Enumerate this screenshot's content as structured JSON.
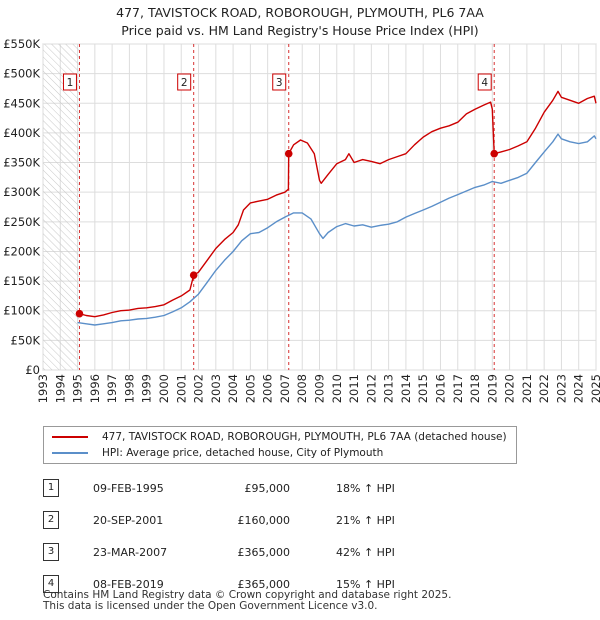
{
  "header": {
    "title_line1": "477, TAVISTOCK ROAD, ROBOROUGH, PLYMOUTH, PL6 7AA",
    "title_line2": "Price paid vs. HM Land Registry's House Price Index (HPI)"
  },
  "legend": {
    "property_label": "477, TAVISTOCK ROAD, ROBOROUGH, PLYMOUTH, PL6 7AA (detached house)",
    "hpi_label": "HPI: Average price, detached house, City of Plymouth"
  },
  "sales": [
    {
      "num": "1",
      "date": "09-FEB-1995",
      "price": "£95,000",
      "hpi": "18% ↑ HPI"
    },
    {
      "num": "2",
      "date": "20-SEP-2001",
      "price": "£160,000",
      "hpi": "21% ↑ HPI"
    },
    {
      "num": "3",
      "date": "23-MAR-2007",
      "price": "£365,000",
      "hpi": "42% ↑ HPI"
    },
    {
      "num": "4",
      "date": "08-FEB-2019",
      "price": "£365,000",
      "hpi": "15% ↑ HPI"
    }
  ],
  "footer": {
    "line1": "Contains HM Land Registry data © Crown copyright and database right 2025.",
    "line2": "This data is licensed under the Open Government Licence v3.0."
  },
  "colors": {
    "property": "#cc0000",
    "hpi": "#5b8fc9",
    "hatch": "#c8c8c8",
    "grid": "#dddddd",
    "sale_marker_line": "#cc0000"
  },
  "chart_data": {
    "type": "line",
    "xlim": [
      1993,
      2025
    ],
    "ylim": [
      0,
      550000
    ],
    "x_ticks": [
      1993,
      1994,
      1995,
      1996,
      1997,
      1998,
      1999,
      2000,
      2001,
      2002,
      2003,
      2004,
      2005,
      2006,
      2007,
      2008,
      2009,
      2010,
      2011,
      2012,
      2013,
      2014,
      2015,
      2016,
      2017,
      2018,
      2019,
      2020,
      2021,
      2022,
      2023,
      2024,
      2025
    ],
    "y_ticks": [
      {
        "value": 0,
        "label": "£0"
      },
      {
        "value": 50000,
        "label": "£50K"
      },
      {
        "value": 100000,
        "label": "£100K"
      },
      {
        "value": 150000,
        "label": "£150K"
      },
      {
        "value": 200000,
        "label": "£200K"
      },
      {
        "value": 250000,
        "label": "£250K"
      },
      {
        "value": 300000,
        "label": "£300K"
      },
      {
        "value": 350000,
        "label": "£350K"
      },
      {
        "value": 400000,
        "label": "£400K"
      },
      {
        "value": 450000,
        "label": "£450K"
      },
      {
        "value": 500000,
        "label": "£500K"
      },
      {
        "value": 550000,
        "label": "£550K"
      }
    ],
    "grid": true,
    "pre_data_hatch_until": 1995.1,
    "sale_markers": [
      {
        "label": "1",
        "x": 1995.11,
        "y": 95000
      },
      {
        "label": "2",
        "x": 2001.72,
        "y": 160000
      },
      {
        "label": "3",
        "x": 2007.22,
        "y": 365000
      },
      {
        "label": "4",
        "x": 2019.11,
        "y": 365000
      }
    ],
    "series": [
      {
        "name": "477, TAVISTOCK ROAD, ROBOROUGH, PLYMOUTH, PL6 7AA (detached house)",
        "color": "#cc0000",
        "points": [
          [
            1995.11,
            95000
          ],
          [
            1995.5,
            92000
          ],
          [
            1996.0,
            90000
          ],
          [
            1996.5,
            93000
          ],
          [
            1997.0,
            97000
          ],
          [
            1997.5,
            100000
          ],
          [
            1998.0,
            101000
          ],
          [
            1998.5,
            104000
          ],
          [
            1999.0,
            105000
          ],
          [
            1999.5,
            107000
          ],
          [
            2000.0,
            110000
          ],
          [
            2000.5,
            118000
          ],
          [
            2001.0,
            125000
          ],
          [
            2001.5,
            135000
          ],
          [
            2001.72,
            160000
          ],
          [
            2002.0,
            165000
          ],
          [
            2002.5,
            185000
          ],
          [
            2003.0,
            205000
          ],
          [
            2003.5,
            220000
          ],
          [
            2004.0,
            232000
          ],
          [
            2004.3,
            245000
          ],
          [
            2004.6,
            270000
          ],
          [
            2005.0,
            282000
          ],
          [
            2005.5,
            285000
          ],
          [
            2006.0,
            288000
          ],
          [
            2006.5,
            295000
          ],
          [
            2007.0,
            300000
          ],
          [
            2007.2,
            305000
          ],
          [
            2007.22,
            365000
          ],
          [
            2007.5,
            380000
          ],
          [
            2007.9,
            388000
          ],
          [
            2008.3,
            383000
          ],
          [
            2008.7,
            365000
          ],
          [
            2009.0,
            320000
          ],
          [
            2009.1,
            315000
          ],
          [
            2009.5,
            330000
          ],
          [
            2010.0,
            348000
          ],
          [
            2010.5,
            355000
          ],
          [
            2010.7,
            365000
          ],
          [
            2011.0,
            350000
          ],
          [
            2011.5,
            355000
          ],
          [
            2012.0,
            352000
          ],
          [
            2012.5,
            348000
          ],
          [
            2013.0,
            355000
          ],
          [
            2013.5,
            360000
          ],
          [
            2014.0,
            365000
          ],
          [
            2014.5,
            380000
          ],
          [
            2015.0,
            393000
          ],
          [
            2015.5,
            402000
          ],
          [
            2016.0,
            408000
          ],
          [
            2016.5,
            412000
          ],
          [
            2017.0,
            418000
          ],
          [
            2017.5,
            432000
          ],
          [
            2018.0,
            440000
          ],
          [
            2018.5,
            447000
          ],
          [
            2018.9,
            452000
          ],
          [
            2019.0,
            440000
          ],
          [
            2019.11,
            365000
          ],
          [
            2019.5,
            368000
          ],
          [
            2020.0,
            372000
          ],
          [
            2020.5,
            378000
          ],
          [
            2021.0,
            385000
          ],
          [
            2021.5,
            408000
          ],
          [
            2022.0,
            435000
          ],
          [
            2022.5,
            455000
          ],
          [
            2022.8,
            470000
          ],
          [
            2023.0,
            460000
          ],
          [
            2023.5,
            455000
          ],
          [
            2024.0,
            450000
          ],
          [
            2024.5,
            458000
          ],
          [
            2024.9,
            462000
          ],
          [
            2025.0,
            450000
          ]
        ]
      },
      {
        "name": "HPI: Average price, detached house, City of Plymouth",
        "color": "#5b8fc9",
        "points": [
          [
            1995.0,
            80000
          ],
          [
            1995.5,
            78000
          ],
          [
            1996.0,
            76000
          ],
          [
            1996.5,
            78000
          ],
          [
            1997.0,
            80000
          ],
          [
            1997.5,
            83000
          ],
          [
            1998.0,
            84000
          ],
          [
            1998.5,
            86000
          ],
          [
            1999.0,
            87000
          ],
          [
            1999.5,
            89000
          ],
          [
            2000.0,
            92000
          ],
          [
            2000.5,
            98000
          ],
          [
            2001.0,
            105000
          ],
          [
            2001.5,
            115000
          ],
          [
            2002.0,
            128000
          ],
          [
            2002.5,
            148000
          ],
          [
            2003.0,
            168000
          ],
          [
            2003.5,
            185000
          ],
          [
            2004.0,
            200000
          ],
          [
            2004.5,
            218000
          ],
          [
            2005.0,
            230000
          ],
          [
            2005.5,
            232000
          ],
          [
            2006.0,
            240000
          ],
          [
            2006.5,
            250000
          ],
          [
            2007.0,
            258000
          ],
          [
            2007.5,
            265000
          ],
          [
            2008.0,
            265000
          ],
          [
            2008.5,
            255000
          ],
          [
            2009.0,
            230000
          ],
          [
            2009.2,
            222000
          ],
          [
            2009.5,
            232000
          ],
          [
            2010.0,
            242000
          ],
          [
            2010.5,
            247000
          ],
          [
            2011.0,
            243000
          ],
          [
            2011.5,
            245000
          ],
          [
            2012.0,
            241000
          ],
          [
            2012.5,
            244000
          ],
          [
            2013.0,
            246000
          ],
          [
            2013.5,
            250000
          ],
          [
            2014.0,
            258000
          ],
          [
            2014.5,
            264000
          ],
          [
            2015.0,
            270000
          ],
          [
            2015.5,
            276000
          ],
          [
            2016.0,
            283000
          ],
          [
            2016.5,
            290000
          ],
          [
            2017.0,
            296000
          ],
          [
            2017.5,
            302000
          ],
          [
            2018.0,
            308000
          ],
          [
            2018.5,
            312000
          ],
          [
            2019.0,
            318000
          ],
          [
            2019.5,
            315000
          ],
          [
            2020.0,
            320000
          ],
          [
            2020.5,
            325000
          ],
          [
            2021.0,
            332000
          ],
          [
            2021.5,
            350000
          ],
          [
            2022.0,
            368000
          ],
          [
            2022.5,
            385000
          ],
          [
            2022.8,
            398000
          ],
          [
            2023.0,
            390000
          ],
          [
            2023.5,
            385000
          ],
          [
            2024.0,
            382000
          ],
          [
            2024.5,
            385000
          ],
          [
            2024.9,
            395000
          ],
          [
            2025.0,
            390000
          ]
        ]
      }
    ]
  }
}
